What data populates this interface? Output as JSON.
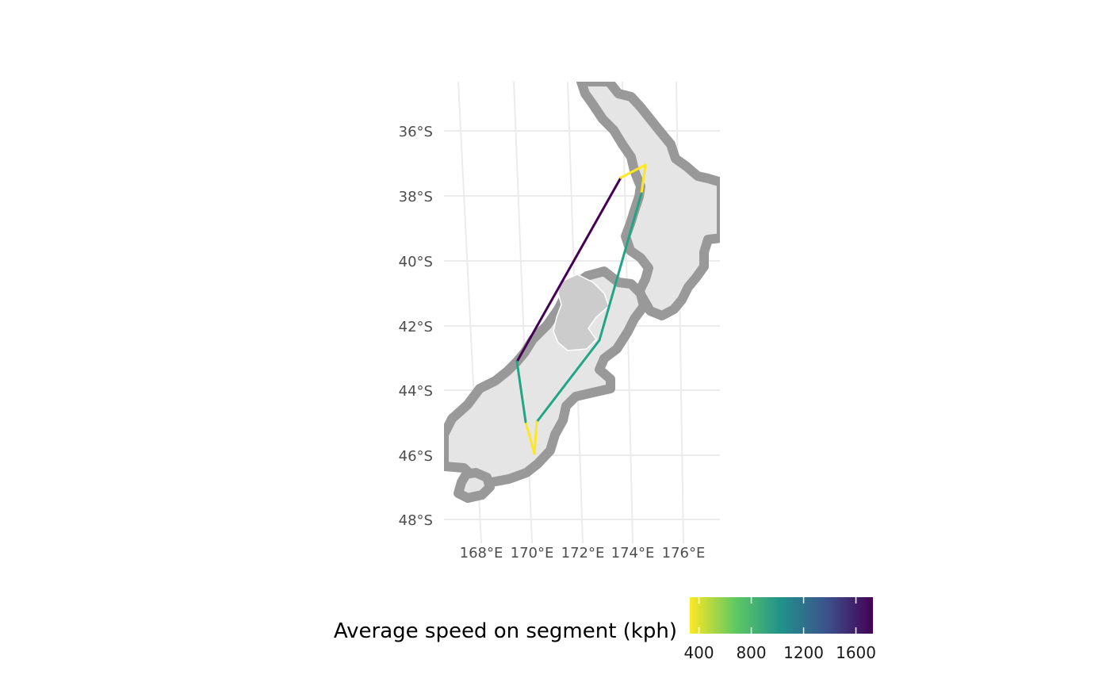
{
  "map": {
    "y_axis_labels": [
      "36°S",
      "38°S",
      "40°S",
      "42°S",
      "44°S",
      "46°S",
      "48°S"
    ],
    "x_axis_labels": [
      "168°E",
      "170°E",
      "172°E",
      "174°E",
      "176°E"
    ],
    "colors": {
      "land": "#e5e5e5",
      "coast_outline": "#999999",
      "lake": "#cccccc",
      "grid": "#ebebeb"
    },
    "route_segments": [
      {
        "from": "A",
        "to": "B",
        "speed_kph": 1700,
        "color": "#440154"
      },
      {
        "from": "B",
        "to": "C",
        "speed_kph": 380,
        "color": "#fde725"
      },
      {
        "from": "C",
        "to": "D",
        "speed_kph": 380,
        "color": "#fde725"
      },
      {
        "from": "D",
        "to": "E",
        "speed_kph": 900,
        "color": "#21a585"
      },
      {
        "from": "E",
        "to": "F",
        "speed_kph": 900,
        "color": "#21a585"
      },
      {
        "from": "F",
        "to": "G",
        "speed_kph": 380,
        "color": "#fde725"
      },
      {
        "from": "G",
        "to": "H",
        "speed_kph": 380,
        "color": "#fde725"
      },
      {
        "from": "H",
        "to": "A",
        "speed_kph": 900,
        "color": "#21a585"
      }
    ]
  },
  "legend": {
    "title": "Average speed on segment (kph)",
    "tick_labels": [
      "400",
      "800",
      "1200",
      "1600"
    ],
    "tick_values": [
      400,
      800,
      1200,
      1600
    ],
    "range": [
      330,
      1730
    ],
    "gradient_colors": [
      "#fde725",
      "#5ec962",
      "#21918c",
      "#3b528b",
      "#440154"
    ]
  }
}
